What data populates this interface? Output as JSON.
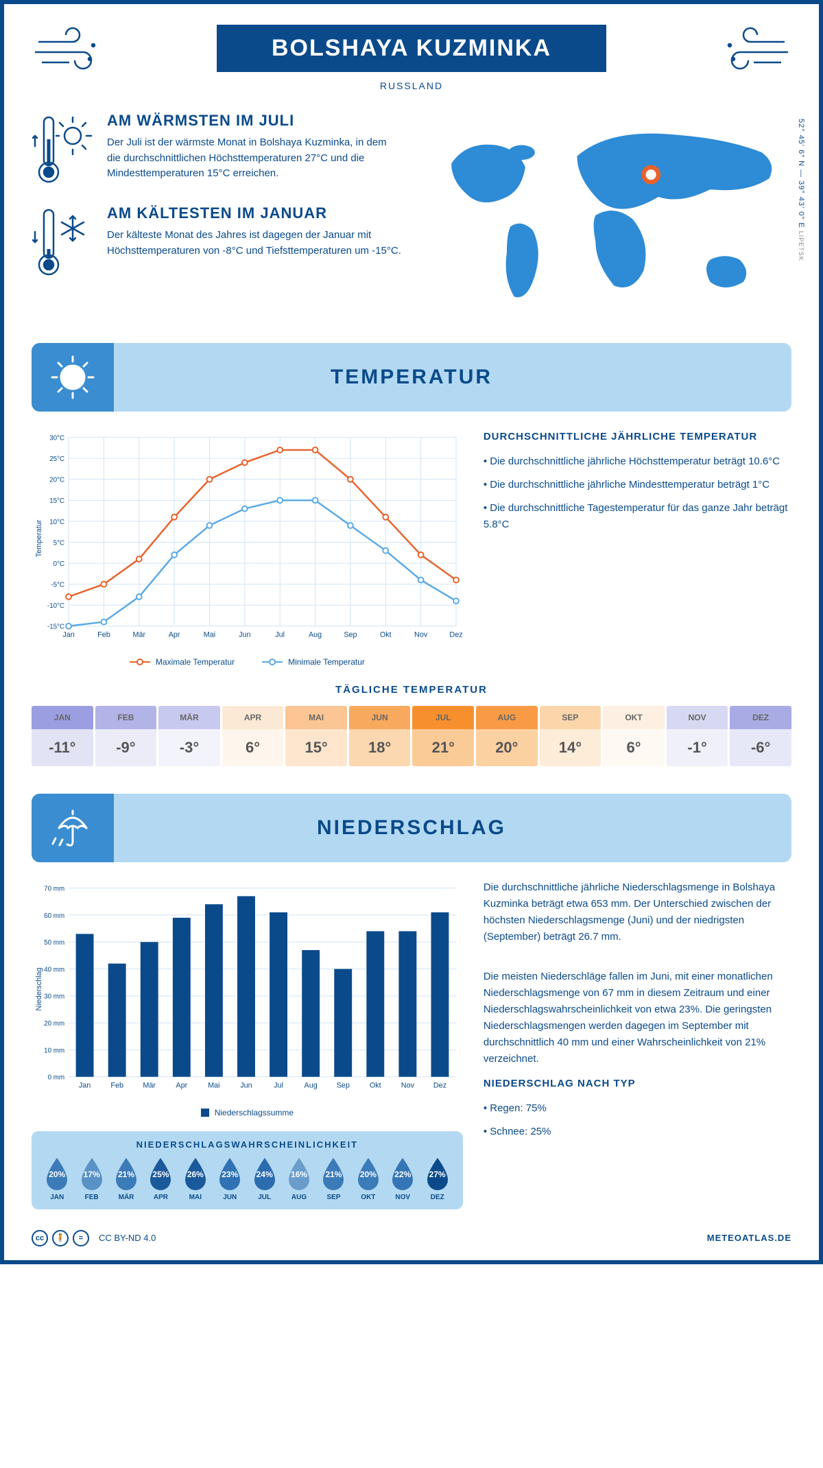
{
  "header": {
    "title": "BOLSHAYA KUZMINKA",
    "country": "RUSSLAND",
    "coords": "52° 45' 6\" N — 39° 43' 0\" E",
    "region": "LIPETSK"
  },
  "facts": {
    "warm": {
      "title": "AM WÄRMSTEN IM JULI",
      "text": "Der Juli ist der wärmste Monat in Bolshaya Kuzminka, in dem die durchschnittlichen Höchsttemperaturen 27°C und die Mindesttemperaturen 15°C erreichen."
    },
    "cold": {
      "title": "AM KÄLTESTEN IM JANUAR",
      "text": "Der kälteste Monat des Jahres ist dagegen der Januar mit Höchsttemperaturen von -8°C und Tiefsttemperaturen um -15°C."
    }
  },
  "months": [
    "Jan",
    "Feb",
    "Mär",
    "Apr",
    "Mai",
    "Jun",
    "Jul",
    "Aug",
    "Sep",
    "Okt",
    "Nov",
    "Dez"
  ],
  "months_upper": [
    "JAN",
    "FEB",
    "MÄR",
    "APR",
    "MAI",
    "JUN",
    "JUL",
    "AUG",
    "SEP",
    "OKT",
    "NOV",
    "DEZ"
  ],
  "temperature": {
    "section_title": "TEMPERATUR",
    "chart": {
      "type": "line",
      "ylabel": "Temperatur",
      "ylim": [
        -15,
        30
      ],
      "ytick_step": 5,
      "max_series": [
        -8,
        -5,
        1,
        11,
        20,
        24,
        27,
        27,
        20,
        11,
        2,
        -4
      ],
      "min_series": [
        -15,
        -14,
        -8,
        2,
        9,
        13,
        15,
        15,
        9,
        3,
        -4,
        -9
      ],
      "max_color": "#e8622c",
      "min_color": "#5aa9e6",
      "grid_color": "#d0e4f5",
      "legend_max": "Maximale Temperatur",
      "legend_min": "Minimale Temperatur"
    },
    "summary": {
      "title": "DURCHSCHNITTLICHE JÄHRLICHE TEMPERATUR",
      "p1": "• Die durchschnittliche jährliche Höchsttemperatur beträgt 10.6°C",
      "p2": "• Die durchschnittliche jährliche Mindesttemperatur beträgt 1°C",
      "p3": "• Die durchschnittliche Tagestemperatur für das ganze Jahr beträgt 5.8°C"
    },
    "daily": {
      "title": "TÄGLICHE TEMPERATUR",
      "values": [
        "-11°",
        "-9°",
        "-3°",
        "6°",
        "15°",
        "18°",
        "21°",
        "20°",
        "14°",
        "6°",
        "-1°",
        "-6°"
      ],
      "header_colors": [
        "#9b9ee0",
        "#b2b4e8",
        "#c8c9ef",
        "#fce9d5",
        "#fbc693",
        "#f9a95e",
        "#f78f2e",
        "#f89b44",
        "#fcd6ab",
        "#fdf0e2",
        "#d7d8f1",
        "#a9abe4"
      ],
      "body_colors": [
        "#e2e3f5",
        "#ebecf8",
        "#f3f3fb",
        "#fef6ec",
        "#fde6cd",
        "#fcd8b0",
        "#fbcb97",
        "#fbd1a2",
        "#fdecd8",
        "#fef9f2",
        "#f0f0fa",
        "#e7e8f7"
      ],
      "text_color": "#555"
    }
  },
  "precipitation": {
    "section_title": "NIEDERSCHLAG",
    "chart": {
      "type": "bar",
      "ylabel": "Niederschlag",
      "ylim": [
        0,
        70
      ],
      "ytick_step": 10,
      "values": [
        53,
        42,
        50,
        59,
        64,
        67,
        61,
        47,
        40,
        54,
        54,
        61
      ],
      "bar_color": "#0a4a8a",
      "grid_color": "#d0e4f5",
      "legend": "Niederschlagssumme"
    },
    "text": {
      "p1": "Die durchschnittliche jährliche Niederschlagsmenge in Bolshaya Kuzminka beträgt etwa 653 mm. Der Unterschied zwischen der höchsten Niederschlagsmenge (Juni) und der niedrigsten (September) beträgt 26.7 mm.",
      "p2": "Die meisten Niederschläge fallen im Juni, mit einer monatlichen Niederschlagsmenge von 67 mm in diesem Zeitraum und einer Niederschlagswahrscheinlichkeit von etwa 23%. Die geringsten Niederschlagsmengen werden dagegen im September mit durchschnittlich 40 mm und einer Wahrscheinlichkeit von 21% verzeichnet.",
      "type_title": "NIEDERSCHLAG NACH TYP",
      "rain": "• Regen: 75%",
      "snow": "• Schnee: 25%"
    },
    "probability": {
      "title": "NIEDERSCHLAGSWAHRSCHEINLICHKEIT",
      "values": [
        "20%",
        "17%",
        "21%",
        "25%",
        "26%",
        "23%",
        "24%",
        "16%",
        "21%",
        "20%",
        "22%",
        "27%"
      ],
      "colors": [
        "#3b7bb8",
        "#5a92c6",
        "#3b7bb8",
        "#1a5a9a",
        "#1a5a9a",
        "#3072b3",
        "#2a6cae",
        "#6a9ccc",
        "#3b7bb8",
        "#3b7bb8",
        "#3476b5",
        "#0a4a8a"
      ]
    }
  },
  "footer": {
    "license": "CC BY-ND 4.0",
    "site": "METEOATLAS.DE"
  }
}
